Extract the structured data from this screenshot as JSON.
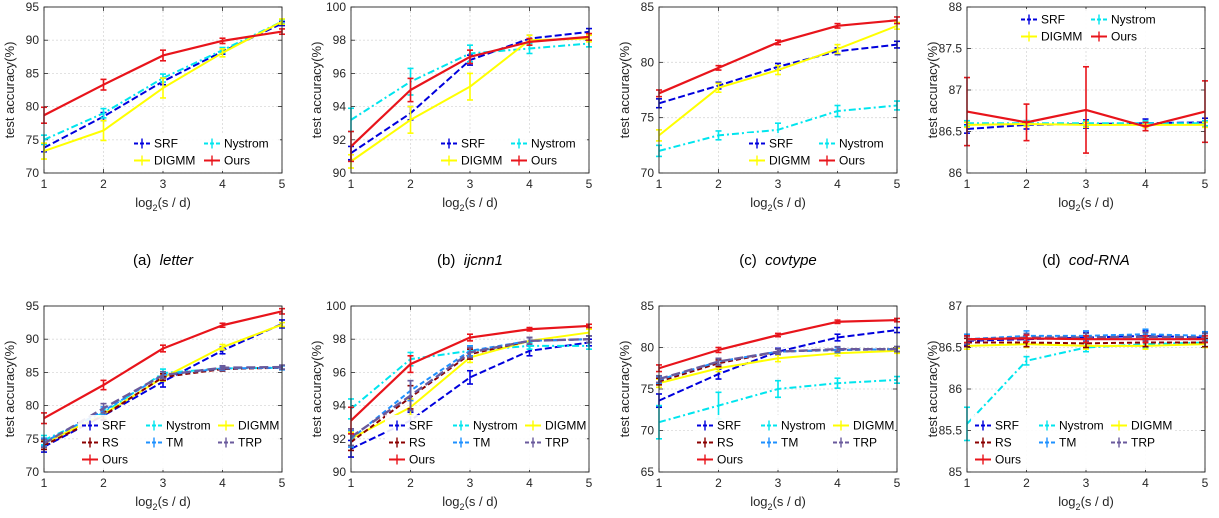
{
  "colors": {
    "SRF": "#0000dd",
    "Nystrom": "#00e5ee",
    "DIGMM": "#ffff00",
    "Ours": "#e8141b",
    "RS": "#8b0000",
    "TM": "#1e90ff",
    "TRP": "#6a5a9c"
  },
  "chart_data": [
    {
      "type": "line",
      "caption_label": "(a)",
      "caption_name": "letter",
      "xlabel": "log2(s / d)",
      "ylabel": "test accuracy(%)",
      "x": [
        1,
        2,
        3,
        4,
        5
      ],
      "xlim": [
        1,
        5
      ],
      "ylim": [
        70,
        95
      ],
      "yticks": [
        70,
        75,
        80,
        85,
        90,
        95
      ],
      "grid": true,
      "legend": "bottom-right",
      "series": [
        {
          "name": "SRF",
          "values": [
            73.8,
            78.5,
            83.8,
            88.3,
            92.5
          ],
          "err": [
            0.6,
            0.6,
            0.5,
            0.4,
            0.3
          ]
        },
        {
          "name": "Nystrom",
          "values": [
            75.0,
            79.0,
            84.3,
            88.5,
            92.8
          ],
          "err": [
            0.7,
            0.7,
            0.6,
            0.4,
            0.3
          ]
        },
        {
          "name": "DIGMM",
          "values": [
            73.3,
            76.4,
            82.8,
            88.1,
            92.8
          ],
          "err": [
            1.2,
            1.5,
            1.5,
            0.6,
            0.4
          ]
        },
        {
          "name": "Ours",
          "values": [
            78.7,
            83.3,
            87.7,
            89.9,
            91.3
          ],
          "err": [
            1.2,
            0.8,
            0.8,
            0.4,
            0.4
          ]
        }
      ]
    },
    {
      "type": "line",
      "caption_label": "(b)",
      "caption_name": "ijcnn1",
      "xlabel": "log2(s / d)",
      "ylabel": "test accuracy(%)",
      "x": [
        1,
        2,
        3,
        4,
        5
      ],
      "xlim": [
        1,
        5
      ],
      "ylim": [
        90,
        100
      ],
      "yticks": [
        90,
        92,
        94,
        96,
        98,
        100
      ],
      "grid": true,
      "legend": "bottom-right",
      "series": [
        {
          "name": "SRF",
          "values": [
            91.2,
            93.6,
            96.8,
            98.1,
            98.5
          ],
          "err": [
            0.4,
            0.4,
            0.3,
            0.2,
            0.2
          ]
        },
        {
          "name": "Nystrom",
          "values": [
            93.2,
            95.5,
            97.2,
            97.5,
            97.8
          ],
          "err": [
            0.7,
            0.8,
            0.5,
            0.3,
            0.2
          ]
        },
        {
          "name": "DIGMM",
          "values": [
            90.7,
            93.2,
            95.2,
            98.0,
            98.1
          ],
          "err": [
            0.4,
            0.8,
            0.8,
            0.3,
            0.2
          ]
        },
        {
          "name": "Ours",
          "values": [
            91.6,
            95.0,
            97.0,
            97.9,
            98.2
          ],
          "err": [
            0.9,
            0.7,
            0.4,
            0.2,
            0.2
          ]
        }
      ]
    },
    {
      "type": "line",
      "caption_label": "(c)",
      "caption_name": "covtype",
      "xlabel": "log2(s / d)",
      "ylabel": "test accuracy(%)",
      "x": [
        1,
        2,
        3,
        4,
        5
      ],
      "xlim": [
        1,
        5
      ],
      "ylim": [
        70,
        85
      ],
      "yticks": [
        70,
        75,
        80,
        85
      ],
      "grid": true,
      "legend": "bottom-right",
      "series": [
        {
          "name": "SRF",
          "values": [
            76.3,
            77.9,
            79.6,
            81.0,
            81.6
          ],
          "err": [
            0.4,
            0.3,
            0.3,
            0.3,
            0.3
          ]
        },
        {
          "name": "Nystrom",
          "values": [
            72.0,
            73.4,
            73.9,
            75.6,
            76.1
          ],
          "err": [
            0.5,
            0.4,
            0.6,
            0.5,
            0.4
          ]
        },
        {
          "name": "DIGMM",
          "values": [
            73.4,
            77.7,
            79.3,
            81.2,
            83.3
          ],
          "err": [
            0.5,
            0.4,
            0.4,
            0.4,
            0.3
          ]
        },
        {
          "name": "Ours",
          "values": [
            77.2,
            79.5,
            81.8,
            83.3,
            83.8
          ],
          "err": [
            0.3,
            0.2,
            0.2,
            0.2,
            0.3
          ]
        }
      ]
    },
    {
      "type": "line",
      "caption_label": "(d)",
      "caption_name": "cod-RNA",
      "xlabel": "log2(s / d)",
      "ylabel": "test accuracy(%)",
      "x": [
        1,
        2,
        3,
        4,
        5
      ],
      "xlim": [
        1,
        5
      ],
      "ylim": [
        86,
        88
      ],
      "yticks": [
        86,
        86.5,
        87,
        87.5,
        88
      ],
      "grid": true,
      "legend": "top",
      "series": [
        {
          "name": "SRF",
          "values": [
            86.53,
            86.58,
            86.59,
            86.6,
            86.61
          ],
          "err": [
            0.05,
            0.05,
            0.05,
            0.05,
            0.05
          ]
        },
        {
          "name": "Nystrom",
          "values": [
            86.6,
            86.6,
            86.6,
            86.6,
            86.6
          ],
          "err": [
            0.03,
            0.03,
            0.03,
            0.03,
            0.03
          ]
        },
        {
          "name": "DIGMM",
          "values": [
            86.58,
            86.59,
            86.58,
            86.58,
            86.58
          ],
          "err": [
            0.03,
            0.03,
            0.03,
            0.03,
            0.03
          ]
        },
        {
          "name": "Ours",
          "values": [
            86.74,
            86.61,
            86.76,
            86.56,
            86.74
          ],
          "err": [
            0.41,
            0.22,
            0.52,
            0.05,
            0.37
          ]
        }
      ]
    },
    {
      "type": "line",
      "xlabel": "log2(s / d)",
      "ylabel": "test accuracy(%)",
      "x": [
        1,
        2,
        3,
        4,
        5
      ],
      "xlim": [
        1,
        5
      ],
      "ylim": [
        70,
        95
      ],
      "yticks": [
        70,
        75,
        80,
        85,
        90,
        95
      ],
      "grid": true,
      "legend": "bottom-right",
      "series": [
        {
          "name": "SRF",
          "values": [
            73.8,
            78.5,
            83.6,
            88.3,
            92.3
          ],
          "err": [
            0.8,
            0.7,
            0.8,
            0.5,
            0.6
          ]
        },
        {
          "name": "Nystrom",
          "values": [
            74.8,
            78.9,
            84.9,
            85.6,
            85.7
          ],
          "err": [
            0.7,
            0.6,
            0.6,
            0.3,
            0.3
          ]
        },
        {
          "name": "DIGMM",
          "values": [
            74.3,
            78.7,
            84.2,
            88.8,
            92.2
          ],
          "err": [
            0.5,
            0.5,
            0.5,
            0.4,
            0.3
          ]
        },
        {
          "name": "RS",
          "values": [
            74.0,
            78.5,
            84.3,
            85.5,
            85.7
          ],
          "err": [
            0.6,
            0.6,
            0.5,
            0.3,
            0.3
          ]
        },
        {
          "name": "TM",
          "values": [
            74.5,
            79.2,
            84.6,
            85.6,
            85.7
          ],
          "err": [
            0.6,
            0.6,
            0.5,
            0.3,
            0.3
          ]
        },
        {
          "name": "TRP",
          "values": [
            74.3,
            79.6,
            84.6,
            85.7,
            85.8
          ],
          "err": [
            0.6,
            0.7,
            0.5,
            0.3,
            0.3
          ]
        },
        {
          "name": "Ours",
          "values": [
            78.1,
            83.1,
            88.6,
            92.1,
            94.2
          ],
          "err": [
            0.8,
            0.7,
            0.5,
            0.3,
            0.4
          ]
        }
      ]
    },
    {
      "type": "line",
      "xlabel": "log2(s / d)",
      "ylabel": "test accuracy(%)",
      "x": [
        1,
        2,
        3,
        4,
        5
      ],
      "xlim": [
        1,
        5
      ],
      "ylim": [
        90,
        100
      ],
      "yticks": [
        90,
        92,
        94,
        96,
        98,
        100
      ],
      "grid": true,
      "legend": "bottom-right",
      "series": [
        {
          "name": "SRF",
          "values": [
            91.4,
            93.1,
            95.7,
            97.3,
            97.8
          ],
          "err": [
            0.5,
            0.5,
            0.4,
            0.3,
            0.2
          ]
        },
        {
          "name": "Nystrom",
          "values": [
            93.8,
            96.8,
            97.3,
            97.6,
            97.6
          ],
          "err": [
            0.6,
            0.4,
            0.3,
            0.2,
            0.2
          ]
        },
        {
          "name": "DIGMM",
          "values": [
            92.0,
            93.9,
            96.9,
            97.9,
            98.4
          ],
          "err": [
            0.4,
            0.5,
            0.3,
            0.2,
            0.2
          ]
        },
        {
          "name": "RS",
          "values": [
            91.8,
            94.5,
            97.1,
            97.9,
            98.0
          ],
          "err": [
            0.5,
            0.7,
            0.3,
            0.2,
            0.2
          ]
        },
        {
          "name": "TM",
          "values": [
            92.0,
            94.9,
            97.3,
            97.9,
            98.0
          ],
          "err": [
            0.5,
            0.6,
            0.3,
            0.2,
            0.2
          ]
        },
        {
          "name": "TRP",
          "values": [
            92.1,
            94.6,
            97.2,
            97.9,
            98.0
          ],
          "err": [
            0.5,
            0.9,
            0.3,
            0.2,
            0.2
          ]
        },
        {
          "name": "Ours",
          "values": [
            93.1,
            96.5,
            98.1,
            98.6,
            98.8
          ],
          "err": [
            0.8,
            0.5,
            0.2,
            0.1,
            0.1
          ]
        }
      ]
    },
    {
      "type": "line",
      "xlabel": "log2(s / d)",
      "ylabel": "test accuracy(%)",
      "x": [
        1,
        2,
        3,
        4,
        5
      ],
      "xlim": [
        1,
        5
      ],
      "ylim": [
        65,
        85
      ],
      "yticks": [
        65,
        70,
        75,
        80,
        85
      ],
      "grid": true,
      "legend": "bottom-right",
      "series": [
        {
          "name": "SRF",
          "values": [
            73.6,
            76.8,
            79.5,
            81.2,
            82.1
          ],
          "err": [
            0.8,
            0.6,
            0.4,
            0.4,
            0.3
          ]
        },
        {
          "name": "Nystrom",
          "values": [
            71.0,
            73.0,
            75.0,
            75.7,
            76.1
          ],
          "err": [
            2.0,
            1.6,
            1.0,
            0.6,
            0.4
          ]
        },
        {
          "name": "DIGMM",
          "values": [
            75.7,
            77.5,
            78.7,
            79.3,
            79.6
          ],
          "err": [
            0.5,
            0.4,
            0.4,
            0.3,
            0.3
          ]
        },
        {
          "name": "RS",
          "values": [
            75.9,
            78.1,
            79.5,
            79.7,
            79.8
          ],
          "err": [
            0.4,
            0.4,
            0.3,
            0.3,
            0.3
          ]
        },
        {
          "name": "TM",
          "values": [
            76.1,
            78.3,
            79.5,
            79.7,
            79.8
          ],
          "err": [
            0.4,
            0.4,
            0.3,
            0.3,
            0.3
          ]
        },
        {
          "name": "TRP",
          "values": [
            76.2,
            78.3,
            79.5,
            79.8,
            79.8
          ],
          "err": [
            0.4,
            0.4,
            0.3,
            0.3,
            0.3
          ]
        },
        {
          "name": "Ours",
          "values": [
            77.5,
            79.7,
            81.5,
            83.1,
            83.3
          ],
          "err": [
            0.4,
            0.3,
            0.2,
            0.2,
            0.2
          ]
        }
      ]
    },
    {
      "type": "line",
      "xlabel": "log2(s / d)",
      "ylabel": "test accuracy(%)",
      "x": [
        1,
        2,
        3,
        4,
        5
      ],
      "xlim": [
        1,
        5
      ],
      "ylim": [
        85,
        87
      ],
      "yticks": [
        85,
        85.5,
        86,
        86.5,
        87
      ],
      "grid": true,
      "legend": "bottom",
      "series": [
        {
          "name": "SRF",
          "values": [
            86.58,
            86.6,
            86.62,
            86.64,
            86.62
          ],
          "err": [
            0.06,
            0.06,
            0.06,
            0.06,
            0.05
          ]
        },
        {
          "name": "Nystrom",
          "values": [
            85.58,
            86.34,
            86.5,
            86.54,
            86.56
          ],
          "err": [
            0.2,
            0.05,
            0.05,
            0.05,
            0.05
          ]
        },
        {
          "name": "DIGMM",
          "values": [
            86.52,
            86.54,
            86.52,
            86.52,
            86.54
          ],
          "err": [
            0.04,
            0.04,
            0.04,
            0.04,
            0.04
          ]
        },
        {
          "name": "RS",
          "values": [
            86.56,
            86.56,
            86.55,
            86.56,
            86.56
          ],
          "err": [
            0.05,
            0.05,
            0.05,
            0.05,
            0.05
          ]
        },
        {
          "name": "TM",
          "values": [
            86.6,
            86.64,
            86.64,
            86.66,
            86.64
          ],
          "err": [
            0.06,
            0.06,
            0.06,
            0.06,
            0.05
          ]
        },
        {
          "name": "TRP",
          "values": [
            86.59,
            86.62,
            86.62,
            86.63,
            86.62
          ],
          "err": [
            0.05,
            0.05,
            0.05,
            0.05,
            0.05
          ]
        },
        {
          "name": "Ours",
          "values": [
            86.6,
            86.61,
            86.6,
            86.6,
            86.6
          ],
          "err": [
            0.04,
            0.04,
            0.04,
            0.04,
            0.04
          ]
        }
      ]
    }
  ]
}
